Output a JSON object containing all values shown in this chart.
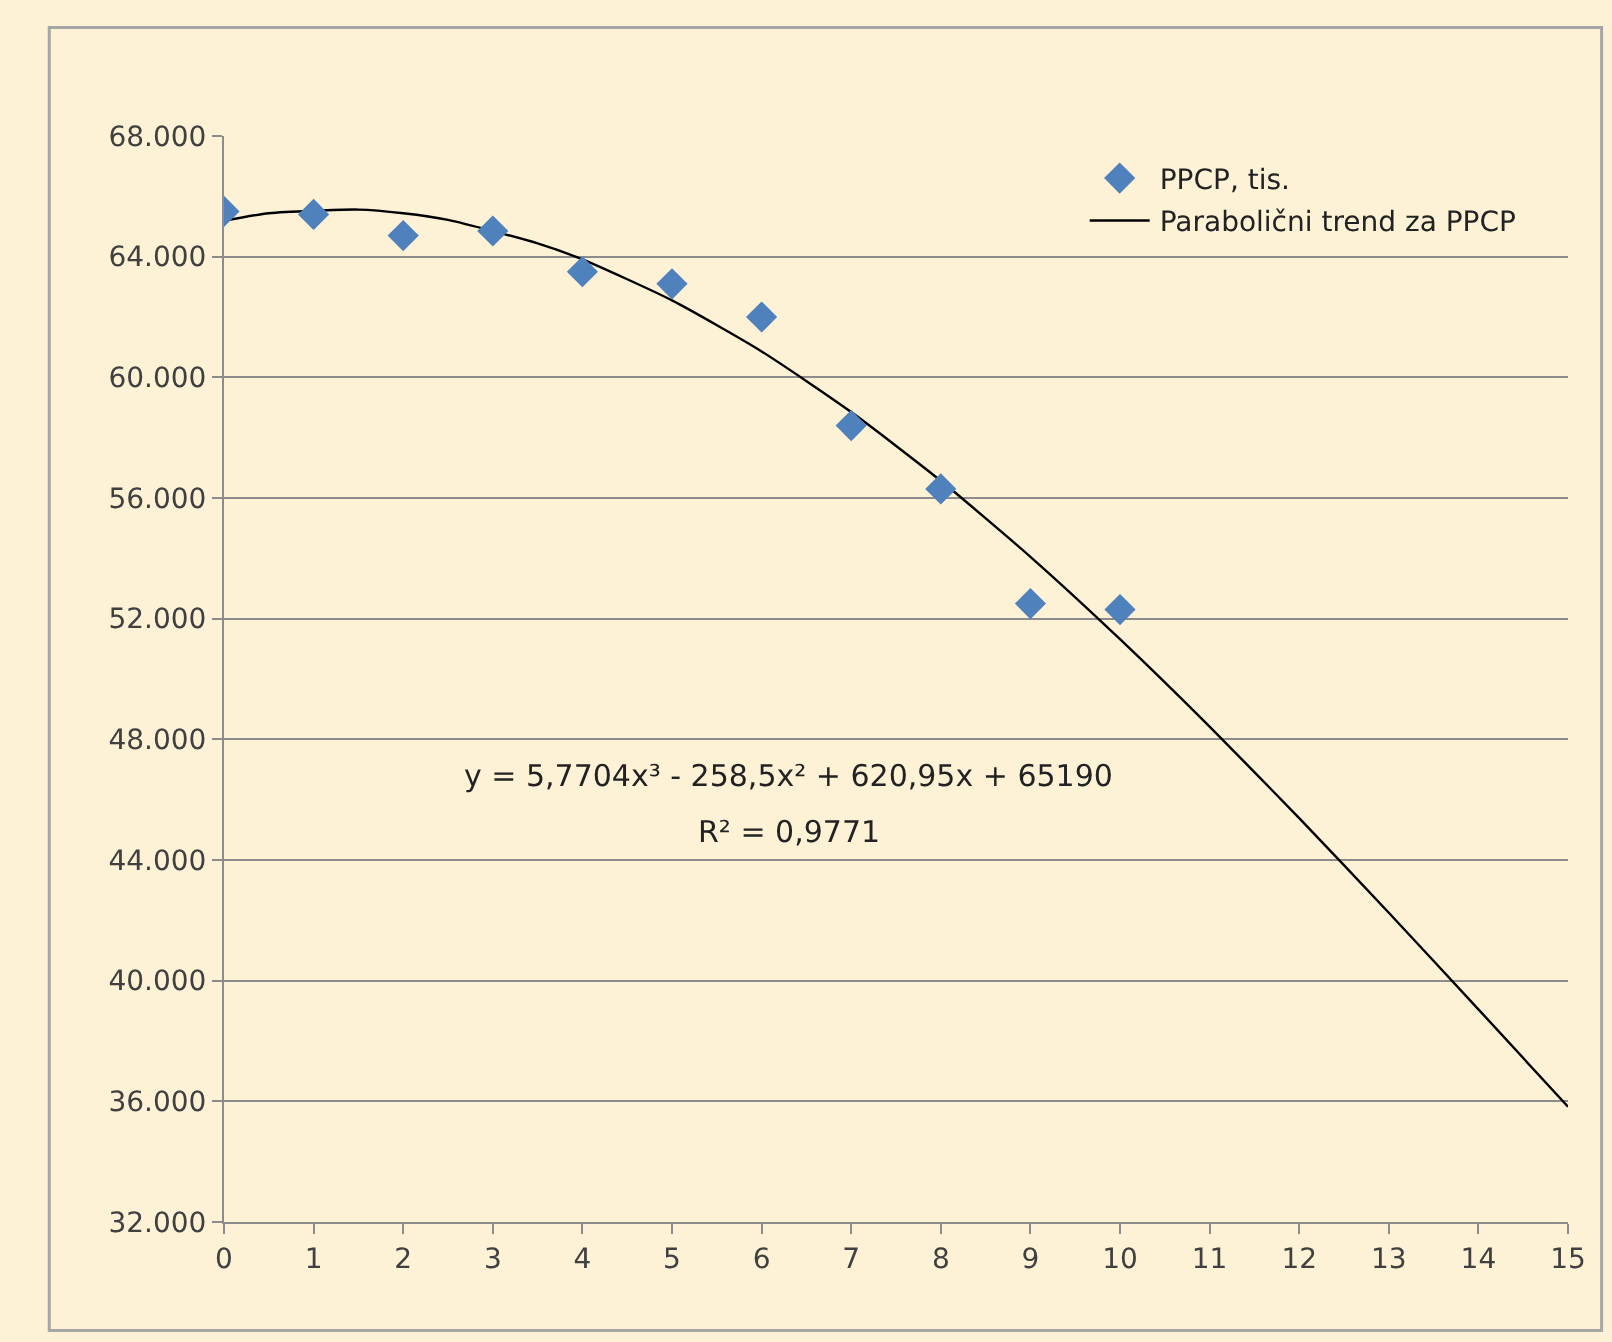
{
  "chart_data": {
    "type": "scatter",
    "marker": "diamond",
    "grid": "y",
    "legend": "top right",
    "xlim": [
      0,
      15
    ],
    "xticks": [
      0,
      1,
      2,
      3,
      4,
      5,
      6,
      7,
      8,
      9,
      10,
      11,
      12,
      13,
      14,
      15
    ],
    "ylim": [
      32000,
      68000
    ],
    "yticks": [
      {
        "value": 32000,
        "label": "32.000"
      },
      {
        "value": 36000,
        "label": "36.000"
      },
      {
        "value": 40000,
        "label": "40.000"
      },
      {
        "value": 44000,
        "label": "44.000"
      },
      {
        "value": 48000,
        "label": "48.000"
      },
      {
        "value": 52000,
        "label": "52.000"
      },
      {
        "value": 56000,
        "label": "56.000"
      },
      {
        "value": 60000,
        "label": "60.000"
      },
      {
        "value": 64000,
        "label": "64.000"
      },
      {
        "value": 68000,
        "label": "68.000"
      }
    ],
    "annotations": [
      "y = 5,7704x³ - 258,5x² + 620,95x + 65190",
      "R² = 0,9771"
    ],
    "series": [
      {
        "name": "PPCP, tis.",
        "color": "#4f81bd",
        "x": [
          0,
          1,
          2,
          3,
          4,
          5,
          6,
          7,
          8,
          9,
          10
        ],
        "values": [
          65500,
          65400,
          64700,
          64850,
          63500,
          63100,
          62000,
          58400,
          56300,
          52500,
          52300
        ]
      },
      {
        "name": "Parabolični trend za PPCP",
        "type": "line",
        "marker": "none",
        "line_style": "solid",
        "color": "#000000",
        "x": [
          0,
          0.5,
          1.5,
          2,
          2.5,
          3.5,
          4,
          5,
          6,
          7,
          8,
          9,
          10,
          11,
          12,
          13,
          14,
          15
        ],
        "values": [
          65190,
          65440,
          65560,
          65440,
          65220,
          64440,
          63910,
          62550,
          60860,
          58850,
          56570,
          54050,
          51320,
          48420,
          45390,
          42250,
          39050,
          35820
        ]
      }
    ]
  }
}
